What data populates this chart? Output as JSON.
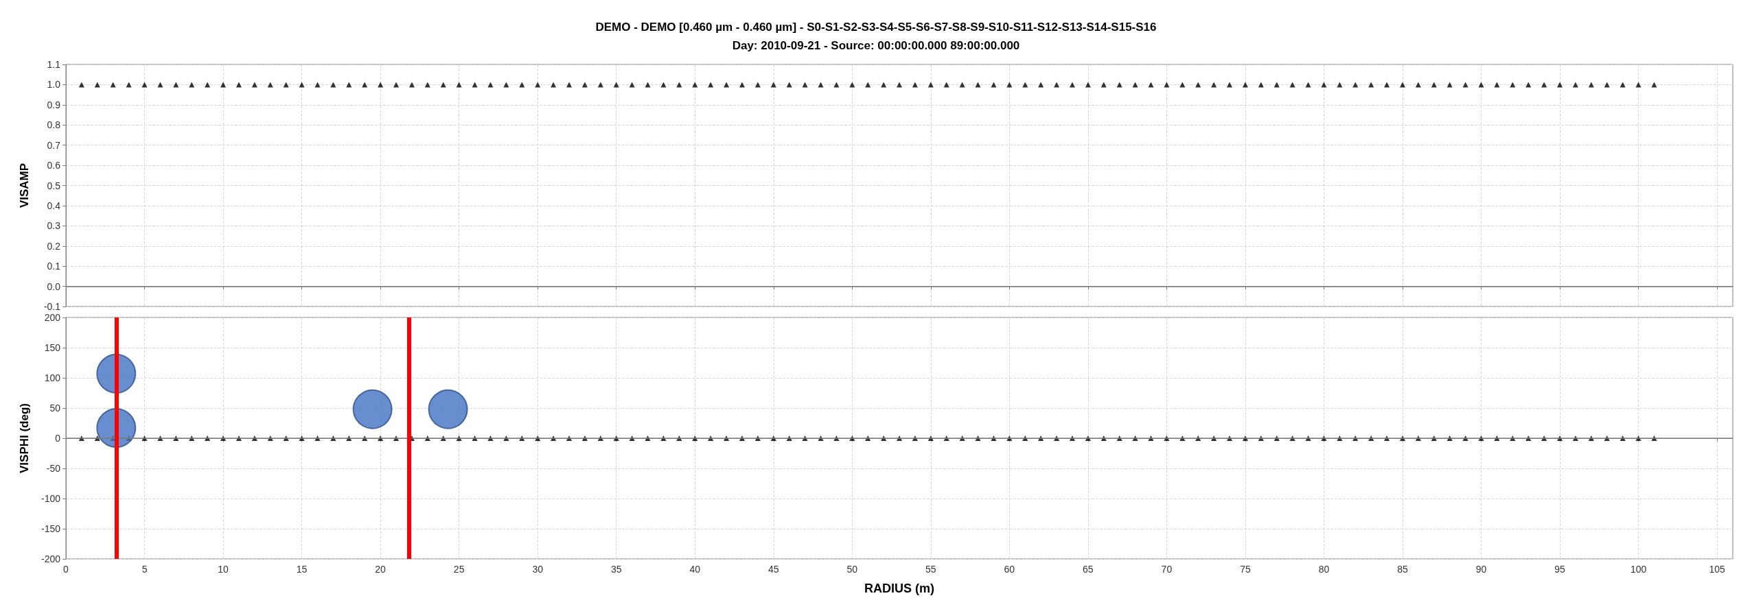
{
  "chart_data": [
    {
      "type": "scatter",
      "title": "DEMO - DEMO [0.460 µm - 0.460 µm] - S0-S1-S2-S3-S4-S5-S6-S7-S8-S9-S10-S11-S12-S13-S14-S15-S16",
      "subtitle": "Day: 2010-09-21 - Source: 00:00:00.000 89:00:00.000",
      "ylabel": "VISAMP",
      "series": [
        {
          "color": "#000000",
          "marker": "triangle",
          "x": [
            1,
            2,
            3,
            4,
            5,
            6,
            7,
            8,
            9,
            10,
            11,
            12,
            13,
            14,
            15,
            16,
            17,
            18,
            19,
            20,
            21,
            22,
            23,
            24,
            25,
            26,
            27,
            28,
            29,
            30,
            31,
            32,
            33,
            34,
            35,
            36,
            37,
            38,
            39,
            40,
            41,
            42,
            43,
            44,
            45,
            46,
            47,
            48,
            49,
            50,
            51,
            52,
            53,
            54,
            55,
            56,
            57,
            58,
            59,
            60,
            61,
            62,
            63,
            64,
            65,
            66,
            67,
            68,
            69,
            70,
            71,
            72,
            73,
            74,
            75,
            76,
            77,
            78,
            79,
            80,
            81,
            82,
            83,
            84,
            85,
            86,
            87,
            88,
            89,
            90,
            91,
            92,
            93,
            94,
            95,
            96,
            97,
            98,
            99,
            100,
            101
          ],
          "values": [
            1,
            1,
            1,
            1,
            1,
            1,
            1,
            1,
            1,
            1,
            1,
            1,
            1,
            1,
            1,
            1,
            1,
            1,
            1,
            1,
            1,
            1,
            1,
            1,
            1,
            1,
            1,
            1,
            1,
            1,
            1,
            1,
            1,
            1,
            1,
            1,
            1,
            1,
            1,
            1,
            1,
            1,
            1,
            1,
            1,
            1,
            1,
            1,
            1,
            1,
            1,
            1,
            1,
            1,
            1,
            1,
            1,
            1,
            1,
            1,
            1,
            1,
            1,
            1,
            1,
            1,
            1,
            1,
            1,
            1,
            1,
            1,
            1,
            1,
            1,
            1,
            1,
            1,
            1,
            1,
            1,
            1,
            1,
            1,
            1,
            1,
            1,
            1,
            1,
            1,
            1,
            1,
            1,
            1,
            1,
            1,
            1,
            1,
            1,
            1,
            1
          ]
        }
      ],
      "xlim": [
        0,
        106
      ],
      "xticks": [
        0,
        5,
        10,
        15,
        20,
        25,
        30,
        35,
        40,
        45,
        50,
        55,
        60,
        65,
        70,
        75,
        80,
        85,
        90,
        95,
        100,
        105
      ],
      "ylim": [
        -0.1,
        1.1
      ],
      "yticks": [
        -0.1,
        {
          "value": 0,
          "label": "0.0"
        },
        0.1,
        0.2,
        0.3,
        0.4,
        0.5,
        0.6,
        0.7,
        0.8,
        0.9,
        {
          "value": 1,
          "label": "1.0"
        },
        1.1
      ],
      "ref_lines": [
        {
          "axis": "y",
          "value": 0,
          "color": "#808080"
        }
      ],
      "grid": true,
      "tick_labels": "y"
    },
    {
      "type": "scatter",
      "xlabel": "RADIUS (m)",
      "ylabel": "VISPHI (deg)",
      "series": [
        {
          "color": "#000000",
          "marker": "triangle",
          "x": [
            1,
            2,
            3,
            4,
            5,
            6,
            7,
            8,
            9,
            10,
            11,
            12,
            13,
            14,
            15,
            16,
            17,
            18,
            19,
            20,
            21,
            22,
            23,
            24,
            25,
            26,
            27,
            28,
            29,
            30,
            31,
            32,
            33,
            34,
            35,
            36,
            37,
            38,
            39,
            40,
            41,
            42,
            43,
            44,
            45,
            46,
            47,
            48,
            49,
            50,
            51,
            52,
            53,
            54,
            55,
            56,
            57,
            58,
            59,
            60,
            61,
            62,
            63,
            64,
            65,
            66,
            67,
            68,
            69,
            70,
            71,
            72,
            73,
            74,
            75,
            76,
            77,
            78,
            79,
            80,
            81,
            82,
            83,
            84,
            85,
            86,
            87,
            88,
            89,
            90,
            91,
            92,
            93,
            94,
            95,
            96,
            97,
            98,
            99,
            100,
            101
          ],
          "values": [
            0,
            0,
            0,
            0,
            0,
            0,
            0,
            0,
            0,
            0,
            0,
            0,
            0,
            0,
            0,
            0,
            0,
            0,
            0,
            0,
            0,
            0,
            0,
            0,
            0,
            0,
            0,
            0,
            0,
            0,
            0,
            0,
            0,
            0,
            0,
            0,
            0,
            0,
            0,
            0,
            0,
            0,
            0,
            0,
            0,
            0,
            0,
            0,
            0,
            0,
            0,
            0,
            0,
            0,
            0,
            0,
            0,
            0,
            0,
            0,
            0,
            0,
            0,
            0,
            0,
            0,
            0,
            0,
            0,
            0,
            0,
            0,
            0,
            0,
            0,
            0,
            0,
            0,
            0,
            0,
            0,
            0,
            0,
            0,
            0,
            0,
            0,
            0,
            0,
            0,
            0,
            0,
            0,
            0,
            0,
            0,
            0,
            0,
            0,
            0,
            0
          ]
        },
        {
          "color": "#4472c4",
          "marker": "circle",
          "x": [
            3.2,
            3.2,
            19.5,
            24.3
          ],
          "values": [
            107,
            17,
            48,
            48
          ]
        }
      ],
      "xlim": [
        0,
        106
      ],
      "xticks": [
        0,
        5,
        10,
        15,
        20,
        25,
        30,
        35,
        40,
        45,
        50,
        55,
        60,
        65,
        70,
        75,
        80,
        85,
        90,
        95,
        100,
        105
      ],
      "ylim": [
        -200,
        200
      ],
      "yticks": [
        -200,
        -150,
        -100,
        -50,
        0,
        50,
        100,
        150,
        200
      ],
      "ref_lines": [
        {
          "axis": "y",
          "value": 0,
          "color": "#808080"
        },
        {
          "axis": "x",
          "value": 3.2,
          "color": "#ff0000"
        },
        {
          "axis": "x",
          "value": 21.8,
          "color": "#ff0000"
        }
      ],
      "grid": true
    }
  ]
}
